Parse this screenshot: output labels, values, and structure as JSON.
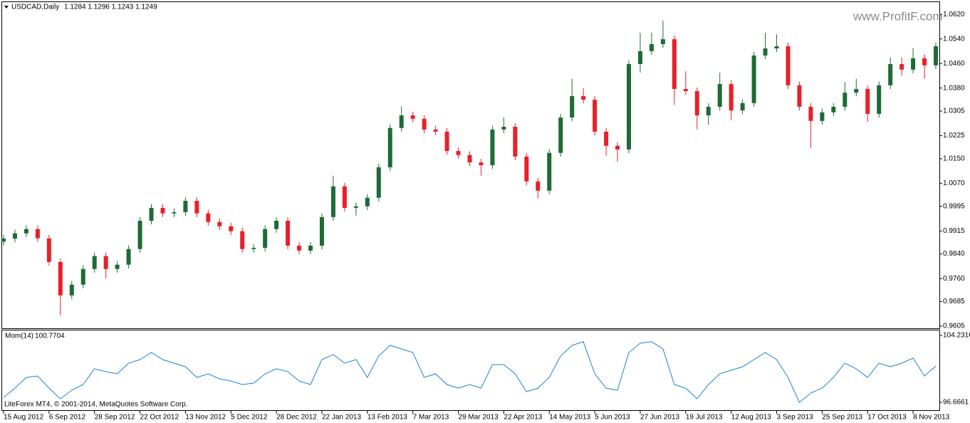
{
  "header": {
    "symbol": "USDCAD,Daily",
    "ohlc": "1.1284 1.1296 1.1243 1.1249"
  },
  "watermark": "www.ProfitF.com",
  "copyright": "LiteForex MT4, © 2001-2014, MetaQuotes Software Corp.",
  "chart_data": [
    {
      "type": "candlestick",
      "up_color": "#1e6b35",
      "down_color": "#e8202a",
      "x": [
        0,
        4,
        8,
        12,
        16,
        20,
        24,
        28,
        32,
        36,
        40,
        44,
        48,
        52,
        56,
        60,
        64,
        68,
        72,
        76,
        80,
        84,
        88,
        92,
        96,
        100,
        104,
        108,
        112,
        116,
        120,
        124,
        128,
        132,
        136,
        140,
        144,
        148,
        152,
        156,
        160,
        164,
        168,
        172,
        176,
        180,
        184,
        188,
        192,
        196,
        200,
        204,
        208,
        212,
        216,
        220,
        224,
        228,
        232,
        236,
        240,
        244,
        248,
        252,
        256,
        260,
        264,
        268,
        272,
        276,
        280,
        284,
        288,
        292,
        296,
        300,
        304,
        308,
        312,
        316,
        320,
        324,
        328
      ],
      "open": [
        0.988,
        0.989,
        0.9907,
        0.9921,
        0.9891,
        0.9814,
        0.9705,
        0.974,
        0.9791,
        0.9833,
        0.9791,
        0.9805,
        0.9856,
        0.9948,
        0.999,
        0.9972,
        0.9976,
        1.0013,
        0.9972,
        0.9944,
        0.993,
        0.9914,
        0.9856,
        0.986,
        0.9921,
        0.9948,
        0.9867,
        0.9851,
        0.9867,
        0.996,
        1.006,
        0.999,
        0.9995,
        1.0023,
        1.0122,
        1.025,
        1.0291,
        1.028,
        1.0245,
        1.0238,
        1.0175,
        1.0162,
        1.0138,
        1.0129,
        1.0245,
        1.0254,
        1.0157,
        1.0076,
        1.0046,
        1.0169,
        1.0284,
        1.0354,
        1.0342,
        1.0238,
        1.0192,
        1.018,
        1.0458,
        1.05,
        1.0523,
        1.0539,
        1.0377,
        1.037,
        1.0291,
        1.0319,
        1.0393,
        1.0307,
        1.0331,
        1.0486,
        1.0509,
        1.0516,
        1.0389,
        1.0319,
        1.0273,
        1.0301,
        1.0319,
        1.0365,
        1.0377,
        1.0296,
        1.0389,
        1.0458,
        1.044,
        1.0477,
        1.0454
      ],
      "high": [
        0.9902,
        0.9919,
        0.9933,
        0.9933,
        0.9903,
        0.9826,
        0.9752,
        0.9803,
        0.9845,
        0.9845,
        0.9817,
        0.9868,
        0.996,
        1.0002,
        1.0002,
        0.9988,
        1.0025,
        1.0025,
        0.9984,
        0.9956,
        0.9942,
        0.9926,
        0.9872,
        0.9933,
        0.996,
        0.996,
        0.9879,
        0.9879,
        0.9972,
        1.0095,
        1.0072,
        1.0007,
        1.0035,
        1.0134,
        1.0262,
        1.032,
        1.0303,
        1.0292,
        1.0257,
        1.025,
        1.0187,
        1.0174,
        1.015,
        1.0257,
        1.0285,
        1.0266,
        1.0169,
        1.0088,
        1.0181,
        1.0296,
        1.041,
        1.038,
        1.0354,
        1.025,
        1.0204,
        1.047,
        1.056,
        1.056,
        1.06,
        1.0551,
        1.0435,
        1.0382,
        1.0331,
        1.043,
        1.0405,
        1.0343,
        1.0498,
        1.056,
        1.0555,
        1.0528,
        1.0401,
        1.0331,
        1.0313,
        1.0331,
        1.04,
        1.041,
        1.0389,
        1.0401,
        1.048,
        1.048,
        1.051,
        1.0489,
        1.0528
      ],
      "low": [
        0.9868,
        0.9878,
        0.9895,
        0.9879,
        0.9802,
        0.964,
        0.9693,
        0.9728,
        0.9779,
        0.976,
        0.9779,
        0.9793,
        0.9844,
        0.9936,
        0.996,
        0.996,
        0.9964,
        0.996,
        0.9932,
        0.9918,
        0.9902,
        0.9844,
        0.9844,
        0.9848,
        0.9909,
        0.9855,
        0.9839,
        0.9839,
        0.9855,
        0.9948,
        0.9978,
        0.9965,
        0.9983,
        1.0011,
        1.011,
        1.0238,
        1.0268,
        1.0233,
        1.0226,
        1.0163,
        1.015,
        1.0126,
        1.0095,
        1.0117,
        1.0233,
        1.0145,
        1.0064,
        1.002,
        1.0034,
        1.0157,
        1.0272,
        1.033,
        1.0226,
        1.016,
        1.014,
        1.0168,
        1.043,
        1.0488,
        1.0511,
        1.0325,
        1.0358,
        1.0245,
        1.026,
        1.0307,
        1.0275,
        1.0295,
        1.0319,
        1.0474,
        1.0497,
        1.0377,
        1.0307,
        1.0185,
        1.0261,
        1.0289,
        1.0307,
        1.0353,
        1.027,
        1.0284,
        1.0377,
        1.042,
        1.0428,
        1.041,
        1.0442
      ],
      "close": [
        0.989,
        0.9907,
        0.9921,
        0.9891,
        0.9814,
        0.9705,
        0.974,
        0.9791,
        0.9833,
        0.9791,
        0.9805,
        0.9856,
        0.9948,
        0.999,
        0.9972,
        0.9976,
        1.0013,
        0.9972,
        0.9944,
        0.993,
        0.9914,
        0.9856,
        0.986,
        0.9921,
        0.9948,
        0.9867,
        0.9851,
        0.9867,
        0.996,
        1.006,
        0.999,
        0.9995,
        1.0023,
        1.0122,
        1.025,
        1.0291,
        1.028,
        1.0245,
        1.0238,
        1.0175,
        1.0162,
        1.0138,
        1.0129,
        1.0245,
        1.0254,
        1.0157,
        1.0076,
        1.0046,
        1.0169,
        1.0284,
        1.0354,
        1.0342,
        1.0238,
        1.0192,
        1.018,
        1.0458,
        1.05,
        1.0523,
        1.0539,
        1.0377,
        1.037,
        1.0291,
        1.0319,
        1.0393,
        1.0307,
        1.0331,
        1.0486,
        1.0509,
        1.0516,
        1.0389,
        1.0319,
        1.0273,
        1.0301,
        1.0319,
        1.0365,
        1.0377,
        1.0296,
        1.0389,
        1.0458,
        1.044,
        1.0477,
        1.0454,
        1.0516
      ],
      "xlim": [
        -0.75,
        329.5
      ],
      "ylim": [
        0.9598,
        1.0662
      ],
      "yticks": [
        {
          "value": 1.062,
          "label": "1.0620"
        },
        {
          "value": 1.054,
          "label": "1.0540"
        },
        {
          "value": 1.046,
          "label": "1.0460"
        },
        {
          "value": 1.038,
          "label": "1.0380"
        },
        1.0305,
        1.0225,
        {
          "value": 1.015,
          "label": "1.0150"
        },
        {
          "value": 1.007,
          "label": "1.0070"
        },
        0.9995,
        0.9915,
        {
          "value": 0.984,
          "label": "0.9840"
        },
        {
          "value": 0.976,
          "label": "0.9760"
        },
        0.9685,
        0.9605
      ]
    },
    {
      "type": "line",
      "label": "Mom(14)",
      "last_value": 100.7704,
      "color": "#1e7fd6",
      "x": [
        0,
        4,
        8,
        12,
        16,
        20,
        24,
        28,
        32,
        36,
        40,
        44,
        48,
        52,
        56,
        60,
        64,
        68,
        72,
        76,
        80,
        84,
        88,
        92,
        96,
        100,
        104,
        108,
        112,
        116,
        120,
        124,
        128,
        132,
        136,
        140,
        144,
        148,
        152,
        156,
        160,
        164,
        168,
        172,
        176,
        180,
        184,
        188,
        192,
        196,
        200,
        204,
        208,
        212,
        216,
        220,
        224,
        228,
        232,
        236,
        240,
        244,
        248,
        252,
        256,
        260,
        264,
        268,
        272,
        276,
        280,
        284,
        288,
        292,
        296,
        300,
        304,
        308,
        312,
        316,
        320,
        324,
        328
      ],
      "values": [
        97.23,
        98.27,
        99.48,
        99.64,
        98.27,
        97.07,
        98.03,
        98.68,
        100.45,
        100.13,
        99.88,
        101.09,
        101.49,
        102.3,
        101.49,
        101.09,
        100.69,
        99.48,
        99.88,
        99.32,
        99.08,
        98.68,
        98.84,
        99.88,
        100.45,
        100.13,
        99.08,
        98.68,
        101.49,
        102.06,
        101.09,
        101.49,
        99.48,
        101.9,
        103.1,
        102.7,
        102.3,
        99.48,
        99.88,
        98.68,
        98.27,
        98.68,
        98.27,
        100.93,
        100.93,
        99.88,
        97.87,
        98.27,
        99.48,
        101.9,
        103.1,
        103.51,
        99.88,
        98.27,
        98.03,
        102.3,
        103.35,
        103.51,
        102.7,
        98.68,
        98.27,
        97.07,
        98.68,
        99.88,
        100.29,
        100.69,
        101.49,
        102.3,
        101.49,
        99.48,
        96.66,
        97.71,
        98.27,
        99.48,
        101.09,
        100.45,
        99.48,
        101.09,
        100.69,
        101.09,
        101.66,
        99.64,
        100.7704
      ],
      "xlim": [
        -0.75,
        329.5
      ],
      "ylim": [
        95.78,
        104.79
      ],
      "yticks": [
        104.2316,
        96.6661
      ],
      "xticks": [
        {
          "value": 0,
          "label": "15 Aug 2012"
        },
        {
          "value": 16,
          "label": "6 Sep 2012"
        },
        {
          "value": 32,
          "label": "28 Sep 2012"
        },
        {
          "value": 48,
          "label": "22 Oct 2012"
        },
        {
          "value": 64,
          "label": "13 Nov 2012"
        },
        {
          "value": 80,
          "label": "5 Dec 2012"
        },
        {
          "value": 96,
          "label": "28 Dec 2012"
        },
        {
          "value": 112,
          "label": "22 Jan 2013"
        },
        {
          "value": 128,
          "label": "13 Feb 2013"
        },
        {
          "value": 144,
          "label": "7 Mar 2013"
        },
        {
          "value": 160,
          "label": "29 Mar 2013"
        },
        {
          "value": 176,
          "label": "22 Apr 2013"
        },
        {
          "value": 192,
          "label": "14 May 2013"
        },
        {
          "value": 208,
          "label": "5 Jun 2013"
        },
        {
          "value": 224,
          "label": "27 Jun 2013"
        },
        {
          "value": 240,
          "label": "19 Jul 2013"
        },
        {
          "value": 256,
          "label": "12 Aug 2013"
        },
        {
          "value": 272,
          "label": "3 Sep 2013"
        },
        {
          "value": 288,
          "label": "25 Sep 2013"
        },
        {
          "value": 304,
          "label": "17 Oct 2013"
        },
        {
          "value": 320,
          "label": "8 Nov 2013"
        }
      ]
    }
  ]
}
